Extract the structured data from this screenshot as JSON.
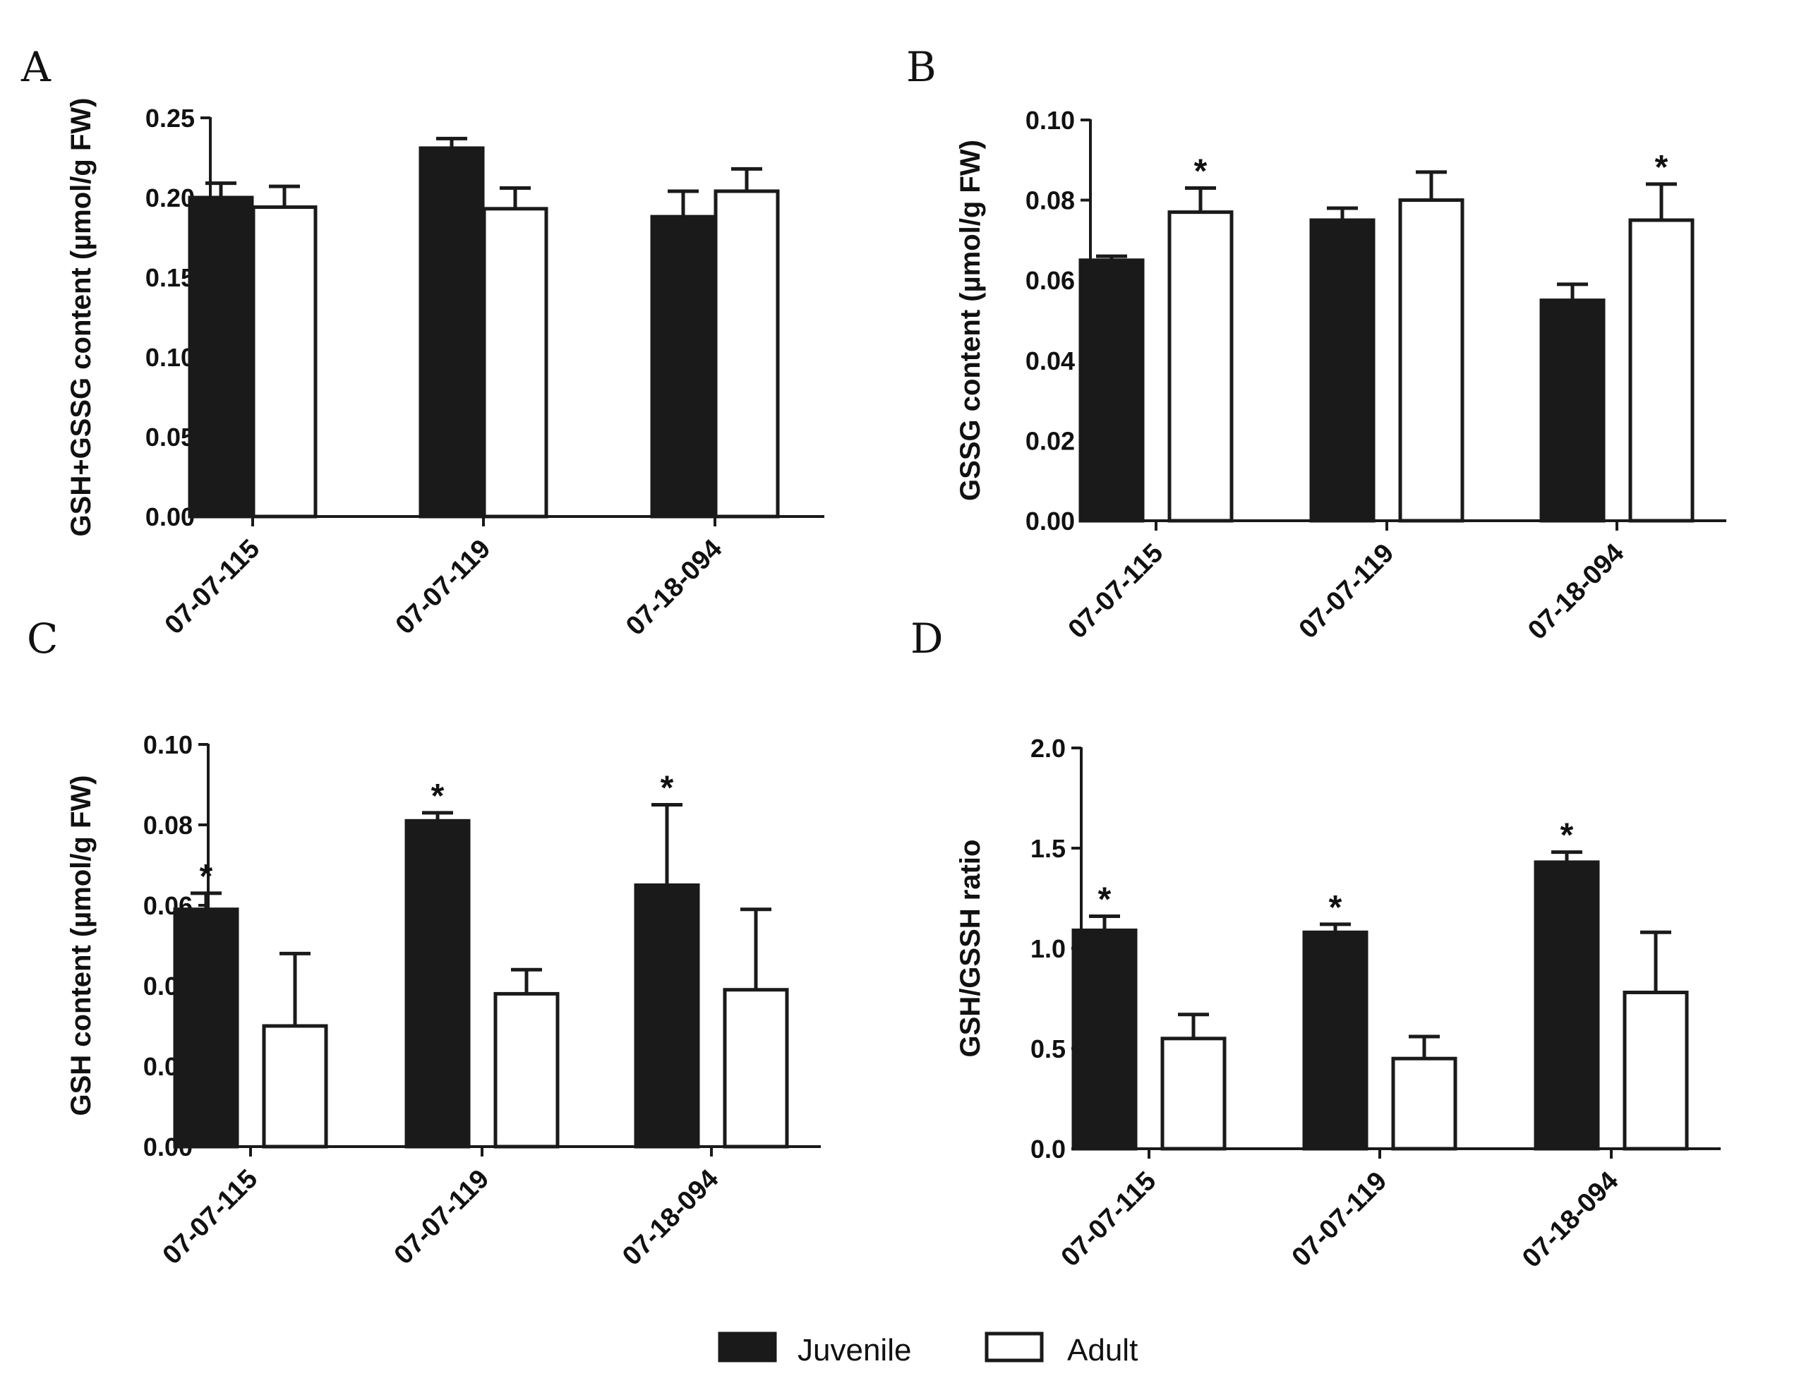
{
  "chart_data": [
    {
      "panel": "A",
      "type": "bar",
      "ylabel": "GSH+GSSG content (µmol/g FW)",
      "categories": [
        "07-07-115",
        "07-07-119",
        "07-18-094"
      ],
      "ylim": [
        0,
        0.25
      ],
      "yticks": [
        0.0,
        0.05,
        0.1,
        0.15,
        0.2,
        0.25
      ],
      "tick_decimals": 2,
      "series": [
        {
          "name": "Juvenile",
          "values": [
            0.2,
            0.231,
            0.188
          ],
          "errors": [
            0.009,
            0.006,
            0.016
          ],
          "sig": [
            false,
            false,
            false
          ]
        },
        {
          "name": "Adult",
          "values": [
            0.194,
            0.193,
            0.204
          ],
          "errors": [
            0.013,
            0.013,
            0.014
          ],
          "sig": [
            false,
            false,
            false
          ]
        }
      ]
    },
    {
      "panel": "B",
      "type": "bar",
      "ylabel": "GSSG content (µmol/g FW)",
      "categories": [
        "07-07-115",
        "07-07-119",
        "07-18-094"
      ],
      "ylim": [
        0,
        0.1
      ],
      "yticks": [
        0.0,
        0.02,
        0.04,
        0.06,
        0.08,
        0.1
      ],
      "tick_decimals": 2,
      "series": [
        {
          "name": "Juvenile",
          "values": [
            0.065,
            0.075,
            0.055
          ],
          "errors": [
            0.001,
            0.003,
            0.004
          ],
          "sig": [
            false,
            false,
            false
          ]
        },
        {
          "name": "Adult",
          "values": [
            0.077,
            0.08,
            0.075
          ],
          "errors": [
            0.006,
            0.007,
            0.009
          ],
          "sig": [
            true,
            false,
            true
          ]
        }
      ]
    },
    {
      "panel": "C",
      "type": "bar",
      "ylabel": "GSH content (µmol/g FW)",
      "categories": [
        "07-07-115",
        "07-07-119",
        "07-18-094"
      ],
      "ylim": [
        0,
        0.1
      ],
      "yticks": [
        0.0,
        0.02,
        0.04,
        0.06,
        0.08,
        0.1
      ],
      "tick_decimals": 2,
      "series": [
        {
          "name": "Juvenile",
          "values": [
            0.059,
            0.081,
            0.065
          ],
          "errors": [
            0.004,
            0.002,
            0.02
          ],
          "sig": [
            true,
            true,
            true
          ]
        },
        {
          "name": "Adult",
          "values": [
            0.03,
            0.038,
            0.039
          ],
          "errors": [
            0.018,
            0.006,
            0.02
          ],
          "sig": [
            false,
            false,
            false
          ]
        }
      ]
    },
    {
      "panel": "D",
      "type": "bar",
      "ylabel": "GSH/GSSH ratio",
      "categories": [
        "07-07-115",
        "07-07-119",
        "07-18-094"
      ],
      "ylim": [
        0,
        2.0
      ],
      "yticks": [
        0.0,
        0.5,
        1.0,
        1.5,
        2.0
      ],
      "tick_decimals": 1,
      "series": [
        {
          "name": "Juvenile",
          "values": [
            1.09,
            1.08,
            1.43
          ],
          "errors": [
            0.07,
            0.04,
            0.05
          ],
          "sig": [
            true,
            true,
            true
          ]
        },
        {
          "name": "Adult",
          "values": [
            0.55,
            0.45,
            0.78
          ],
          "errors": [
            0.12,
            0.11,
            0.3
          ],
          "sig": [
            false,
            false,
            false
          ]
        }
      ]
    }
  ],
  "sig_marker": "*",
  "legend": {
    "placement": "bottom-center",
    "items": [
      {
        "name": "Juvenile",
        "color": "#1a1a1a"
      },
      {
        "name": "Adult",
        "color": "#ffffff"
      }
    ]
  },
  "colors": {
    "juvenile_fill": "#1a1a1a",
    "adult_fill": "#ffffff",
    "stroke": "#1a1a1a"
  }
}
